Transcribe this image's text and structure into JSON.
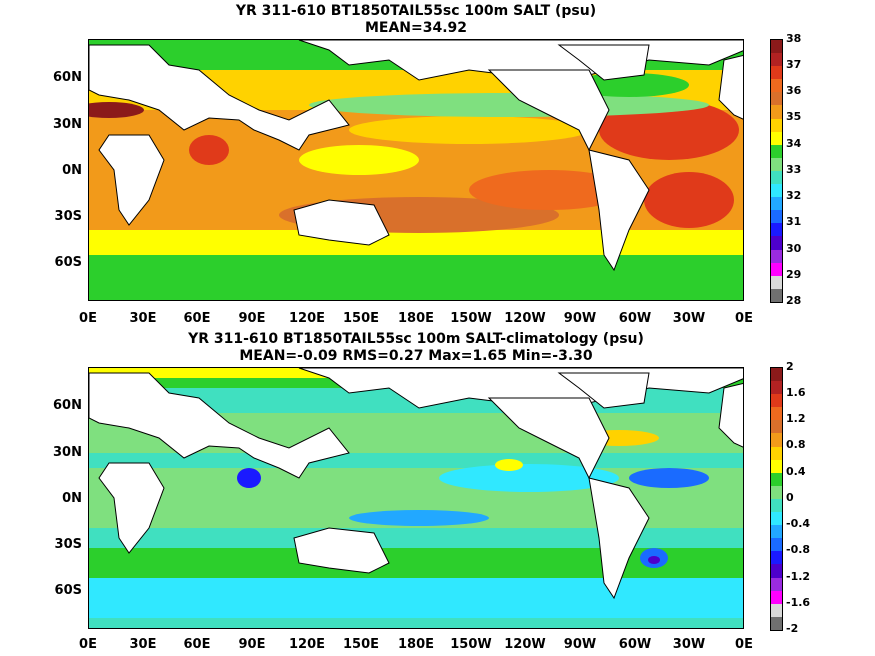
{
  "panels": [
    {
      "title_line1": "YR 311-610 BT1850TAIL55sc 100m SALT (psu)",
      "title_line2": "MEAN=34.92",
      "colorbar": {
        "labels": [
          "38",
          "37",
          "36",
          "35",
          "34",
          "33",
          "32",
          "31",
          "30",
          "29",
          "28"
        ],
        "colors": [
          "#8b1a1a",
          "#b22222",
          "#e03a1a",
          "#ef6a1e",
          "#d9702b",
          "#f29a1a",
          "#ffd200",
          "#ffff00",
          "#2ccf2c",
          "#7fe07f",
          "#40e0c0",
          "#30e8ff",
          "#22a8ff",
          "#1a6bff",
          "#1a1aff",
          "#4d00cc",
          "#9a2be0",
          "#ff00ff",
          "#d9d9d9",
          "#707070"
        ]
      }
    },
    {
      "title_line1": "YR 311-610 BT1850TAIL55sc 100m SALT-climatology (psu)",
      "title_line2": "MEAN=-0.09   RMS=0.27   Max=1.65   Min=-3.30",
      "colorbar": {
        "labels": [
          "2",
          "1.6",
          "1.2",
          "0.8",
          "0.4",
          "0",
          "-0.4",
          "-0.8",
          "-1.2",
          "-1.6",
          "-2"
        ],
        "colors": [
          "#8b1a1a",
          "#b22222",
          "#e03a1a",
          "#ef6a1e",
          "#d9702b",
          "#f29a1a",
          "#ffd200",
          "#ffff00",
          "#2ccf2c",
          "#7fe07f",
          "#40e0c0",
          "#30e8ff",
          "#22a8ff",
          "#1a6bff",
          "#1a1aff",
          "#4d00cc",
          "#9a2be0",
          "#ff00ff",
          "#d9d9d9",
          "#707070"
        ]
      }
    }
  ],
  "axes": {
    "lat_labels": [
      "60N",
      "30N",
      "0N",
      "30S",
      "60S"
    ],
    "lon_labels": [
      "0E",
      "30E",
      "60E",
      "90E",
      "120E",
      "150E",
      "180E",
      "150W",
      "120W",
      "90W",
      "60W",
      "30W",
      "0E"
    ]
  }
}
